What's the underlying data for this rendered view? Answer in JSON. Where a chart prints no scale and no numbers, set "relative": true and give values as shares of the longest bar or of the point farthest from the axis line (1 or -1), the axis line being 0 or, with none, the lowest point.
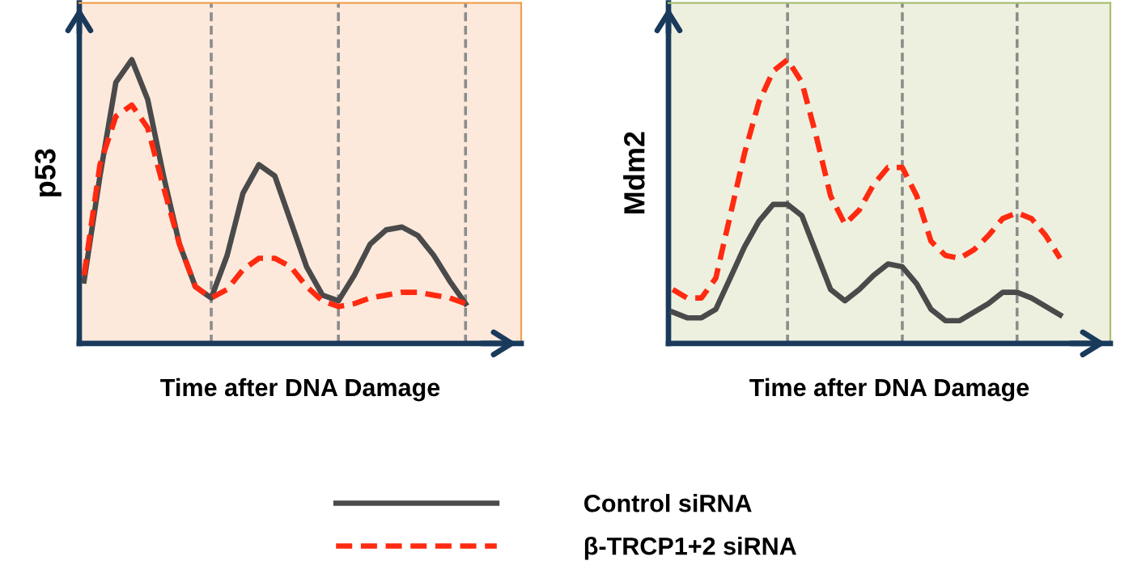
{
  "chart_data": [
    {
      "type": "line",
      "relative": true,
      "ylabel": "p53",
      "xlabel": "Time after DNA Damage",
      "categories": [
        null,
        null,
        null,
        null,
        null,
        null,
        null,
        null,
        null,
        null,
        null,
        null,
        null,
        null,
        null,
        null,
        null,
        null,
        null,
        null,
        null,
        null,
        null,
        null,
        null
      ],
      "grid": "x",
      "legend": "bottom",
      "series": [
        {
          "name": "Control siRNA",
          "color": "#4a4a4a",
          "line_style": "solid",
          "values": [
            0.22,
            0.59,
            0.92,
            1.0,
            0.86,
            0.59,
            0.35,
            0.2,
            0.16,
            0.31,
            0.53,
            0.63,
            0.59,
            0.43,
            0.27,
            0.17,
            0.15,
            0.24,
            0.35,
            0.4,
            0.41,
            0.38,
            0.31,
            0.22,
            0.14
          ]
        },
        {
          "name": "β-TRCP1+2 siRNA",
          "color": "#ff2a10",
          "line_style": "dashed",
          "values": [
            0.24,
            0.63,
            0.8,
            0.84,
            0.76,
            0.55,
            0.35,
            0.2,
            0.16,
            0.19,
            0.26,
            0.3,
            0.3,
            0.27,
            0.2,
            0.15,
            0.13,
            0.14,
            0.16,
            0.17,
            0.18,
            0.18,
            0.17,
            0.16,
            0.14
          ]
        }
      ]
    },
    {
      "type": "line",
      "relative": true,
      "ylabel": "Mdm2",
      "xlabel": "Time after DNA Damage",
      "categories": [
        null,
        null,
        null,
        null,
        null,
        null,
        null,
        null,
        null,
        null,
        null,
        null,
        null,
        null,
        null,
        null,
        null,
        null,
        null,
        null,
        null,
        null,
        null,
        null,
        null,
        null,
        null,
        null
      ],
      "grid": "x",
      "series": [
        {
          "color": "#4a4a4a",
          "line_style": "solid",
          "values": [
            0.11,
            0.09,
            0.09,
            0.12,
            0.23,
            0.34,
            0.43,
            0.49,
            0.49,
            0.45,
            0.32,
            0.19,
            0.15,
            0.19,
            0.24,
            0.28,
            0.27,
            0.21,
            0.12,
            0.08,
            0.08,
            0.11,
            0.14,
            0.18,
            0.18,
            0.16,
            0.13,
            0.1
          ]
        },
        {
          "color": "#ff2a10",
          "line_style": "dashed",
          "values": [
            0.19,
            0.16,
            0.16,
            0.23,
            0.45,
            0.67,
            0.85,
            0.96,
            1.0,
            0.92,
            0.73,
            0.52,
            0.42,
            0.47,
            0.56,
            0.62,
            0.62,
            0.52,
            0.36,
            0.31,
            0.3,
            0.33,
            0.38,
            0.44,
            0.46,
            0.44,
            0.38,
            0.3
          ]
        }
      ]
    }
  ]
}
